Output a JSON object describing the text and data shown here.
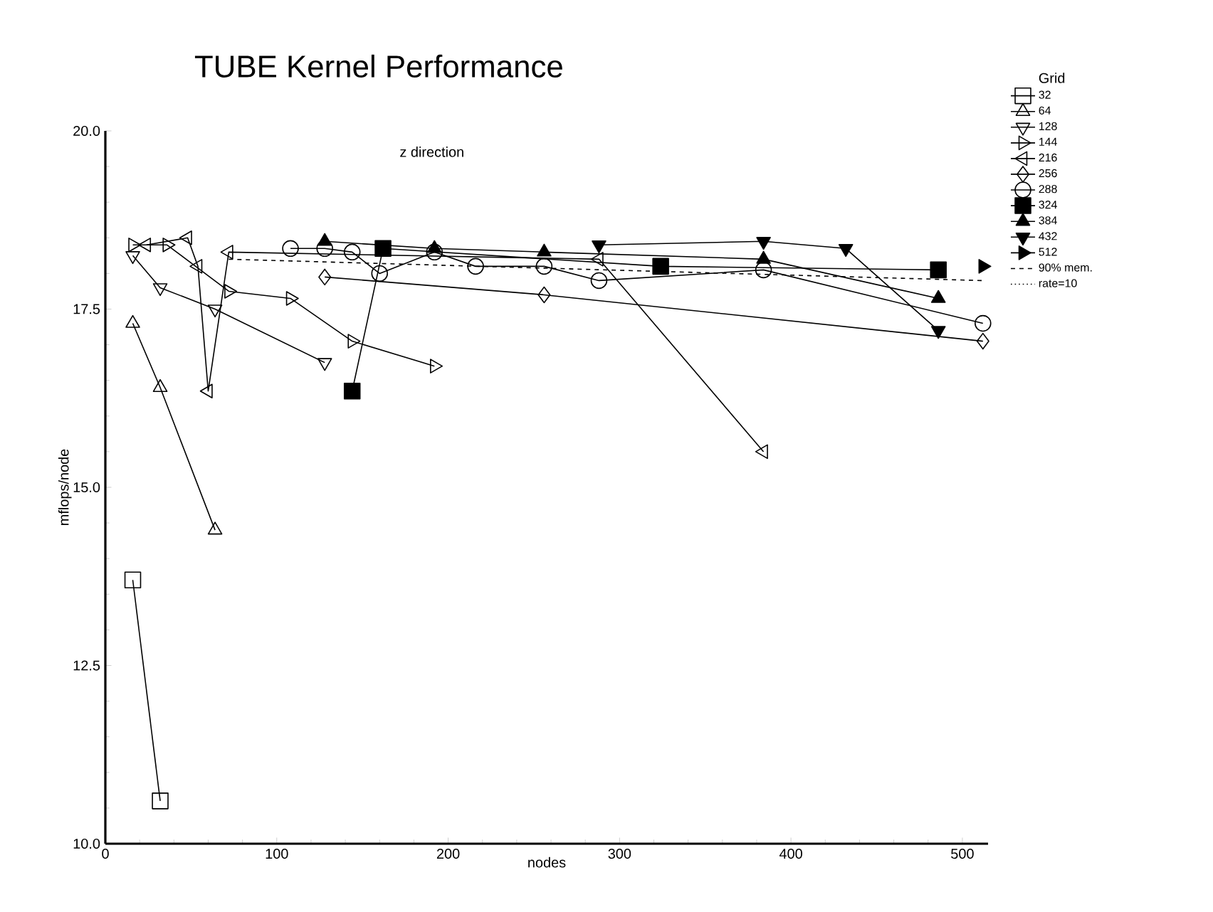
{
  "chart_data": {
    "type": "line",
    "title": "TUBE Kernel Performance",
    "subtitle": "z direction",
    "xlabel": "nodes",
    "ylabel": "mflops/node",
    "legend_title": "Grid",
    "legend": "top right",
    "xlim": [
      0,
      515
    ],
    "ylim": [
      10,
      20
    ],
    "xticks": [
      0,
      100,
      200,
      300,
      400,
      500
    ],
    "yticks": [
      {
        "value": 10,
        "label": "10.0"
      },
      {
        "value": 12.5,
        "label": "12.5"
      },
      {
        "value": 15,
        "label": "15.0"
      },
      {
        "value": 17.5,
        "label": "17.5"
      },
      {
        "value": 20,
        "label": "20.0"
      }
    ],
    "grid": false,
    "line_style": "solid",
    "series": [
      {
        "name": "32",
        "color": "#000000",
        "marker": "square",
        "x": [
          16,
          32
        ],
        "values": [
          13.7,
          10.6
        ]
      },
      {
        "name": "64",
        "color": "#000000",
        "marker": "triangle",
        "x": [
          16,
          32,
          64
        ],
        "values": [
          17.3,
          16.4,
          14.4
        ]
      },
      {
        "name": "128",
        "color": "#000000",
        "marker": "triangle_down",
        "x": [
          16,
          32,
          64,
          128
        ],
        "values": [
          18.25,
          17.8,
          17.5,
          16.75
        ]
      },
      {
        "name": "144",
        "color": "#000000",
        "marker": "triangle_right",
        "x": [
          16,
          36,
          72,
          108,
          144,
          192
        ],
        "values": [
          18.4,
          18.4,
          17.75,
          17.65,
          17.05,
          16.7
        ]
      },
      {
        "name": "216",
        "color": "#000000",
        "marker": "triangle_left",
        "x": [
          24,
          48,
          54,
          60,
          72,
          288,
          384
        ],
        "values": [
          18.4,
          18.5,
          18.1,
          16.35,
          18.3,
          18.2,
          15.5
        ]
      },
      {
        "name": "256",
        "color": "#000000",
        "marker": "diamond",
        "x": [
          128,
          256,
          512
        ],
        "values": [
          17.95,
          17.7,
          17.05
        ]
      },
      {
        "name": "288",
        "color": "#000000",
        "marker": "circle",
        "x": [
          108,
          128,
          144,
          160,
          192,
          216,
          256,
          288,
          384,
          512
        ],
        "values": [
          18.35,
          18.35,
          18.3,
          18.0,
          18.3,
          18.1,
          18.1,
          17.9,
          18.05,
          17.3
        ]
      },
      {
        "name": "324",
        "color": "#000000",
        "marker": "square_filled",
        "x": [
          144,
          162,
          324,
          486
        ],
        "values": [
          16.35,
          18.35,
          18.1,
          18.05
        ]
      },
      {
        "name": "384",
        "color": "#000000",
        "marker": "triangle_filled",
        "x": [
          128,
          192,
          256,
          384,
          486
        ],
        "values": [
          18.45,
          18.35,
          18.3,
          18.2,
          17.65
        ]
      },
      {
        "name": "432",
        "color": "#000000",
        "marker": "triangle_down_filled",
        "x": [
          288,
          384,
          432,
          486
        ],
        "values": [
          18.4,
          18.45,
          18.35,
          17.2
        ]
      },
      {
        "name": "512",
        "color": "#000000",
        "marker": "triangle_right_filled",
        "x": [
          512
        ],
        "values": [
          18.1
        ]
      },
      {
        "name": "90% mem.",
        "color": "#000000",
        "marker": "none",
        "line_style": "dashed",
        "x": [
          72,
          512
        ],
        "values": [
          18.2,
          17.9
        ]
      },
      {
        "name": "rate=10",
        "color": "#000000",
        "marker": "none",
        "line_style": "dotted"
      }
    ]
  }
}
